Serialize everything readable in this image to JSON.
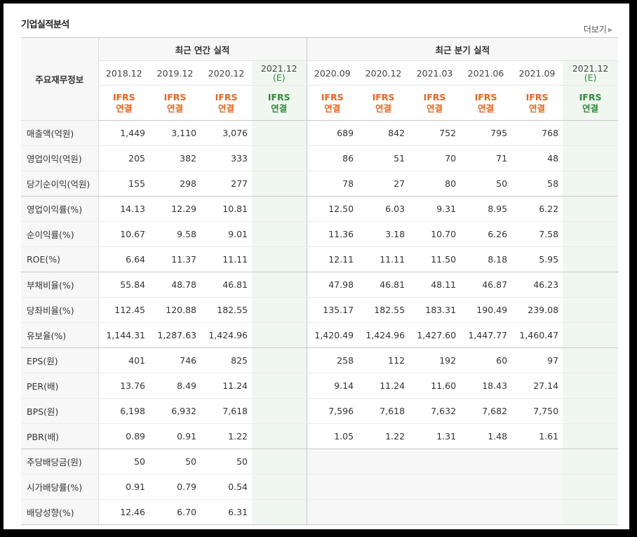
{
  "title": "기업실적분석",
  "more": "더보기",
  "header": {
    "corner": "주요재무정보",
    "annual_group": "최근 연간 실적",
    "quarter_group": "최근 분기 실적",
    "annual": [
      {
        "date": "2018.12",
        "est": ""
      },
      {
        "date": "2019.12",
        "est": ""
      },
      {
        "date": "2020.12",
        "est": ""
      },
      {
        "date": "2021.12",
        "est": "(E)"
      }
    ],
    "quarter": [
      {
        "date": "2020.09",
        "est": ""
      },
      {
        "date": "2020.12",
        "est": ""
      },
      {
        "date": "2021.03",
        "est": ""
      },
      {
        "date": "2021.06",
        "est": ""
      },
      {
        "date": "2021.09",
        "est": ""
      },
      {
        "date": "2021.12",
        "est": "(E)"
      }
    ],
    "ifrs_line1": "IFRS",
    "ifrs_line2": "연결"
  },
  "rows": [
    {
      "label": "매출액(억원)",
      "annual": [
        "1,449",
        "3,110",
        "3,076",
        ""
      ],
      "quarter": [
        "689",
        "842",
        "752",
        "795",
        "768",
        ""
      ]
    },
    {
      "label": "영업이익(억원)",
      "annual": [
        "205",
        "382",
        "333",
        ""
      ],
      "quarter": [
        "86",
        "51",
        "70",
        "71",
        "48",
        ""
      ]
    },
    {
      "label": "당기순이익(억원)",
      "annual": [
        "155",
        "298",
        "277",
        ""
      ],
      "quarter": [
        "78",
        "27",
        "80",
        "50",
        "58",
        ""
      ],
      "group_end": true
    },
    {
      "label": "영업이익률(%)",
      "annual": [
        "14.13",
        "12.29",
        "10.81",
        ""
      ],
      "quarter": [
        "12.50",
        "6.03",
        "9.31",
        "8.95",
        "6.22",
        ""
      ]
    },
    {
      "label": "순이익률(%)",
      "annual": [
        "10.67",
        "9.58",
        "9.01",
        ""
      ],
      "quarter": [
        "11.36",
        "3.18",
        "10.70",
        "6.26",
        "7.58",
        ""
      ]
    },
    {
      "label": "ROE(%)",
      "annual": [
        "6.64",
        "11.37",
        "11.11",
        ""
      ],
      "quarter": [
        "12.11",
        "11.11",
        "11.50",
        "8.18",
        "5.95",
        ""
      ],
      "group_end": true
    },
    {
      "label": "부채비율(%)",
      "annual": [
        "55.84",
        "48.78",
        "46.81",
        ""
      ],
      "quarter": [
        "47.98",
        "46.81",
        "48.11",
        "46.87",
        "46.23",
        ""
      ]
    },
    {
      "label": "당좌비율(%)",
      "annual": [
        "112.45",
        "120.88",
        "182.55",
        ""
      ],
      "quarter": [
        "135.17",
        "182.55",
        "183.31",
        "190.49",
        "239.08",
        ""
      ]
    },
    {
      "label": "유보율(%)",
      "annual": [
        "1,144.31",
        "1,287.63",
        "1,424.96",
        ""
      ],
      "quarter": [
        "1,420.49",
        "1,424.96",
        "1,427.60",
        "1,447.77",
        "1,460.47",
        ""
      ],
      "group_end": true
    },
    {
      "label": "EPS(원)",
      "annual": [
        "401",
        "746",
        "825",
        ""
      ],
      "quarter": [
        "258",
        "112",
        "192",
        "60",
        "97",
        ""
      ]
    },
    {
      "label": "PER(배)",
      "annual": [
        "13.76",
        "8.49",
        "11.24",
        ""
      ],
      "quarter": [
        "9.14",
        "11.24",
        "11.60",
        "18.43",
        "27.14",
        ""
      ]
    },
    {
      "label": "BPS(원)",
      "annual": [
        "6,198",
        "6,932",
        "7,618",
        ""
      ],
      "quarter": [
        "7,596",
        "7,618",
        "7,632",
        "7,682",
        "7,750",
        ""
      ]
    },
    {
      "label": "PBR(배)",
      "annual": [
        "0.89",
        "0.91",
        "1.22",
        ""
      ],
      "quarter": [
        "1.05",
        "1.22",
        "1.31",
        "1.48",
        "1.61",
        ""
      ],
      "group_end": true
    },
    {
      "label": "주당배당금(원)",
      "annual": [
        "50",
        "50",
        "50",
        ""
      ],
      "quarter": null
    },
    {
      "label": "시가배당률(%)",
      "annual": [
        "0.91",
        "0.79",
        "0.54",
        ""
      ],
      "quarter": null
    },
    {
      "label": "배당성향(%)",
      "annual": [
        "12.46",
        "6.70",
        "6.31",
        ""
      ],
      "quarter": null,
      "last": true
    }
  ]
}
